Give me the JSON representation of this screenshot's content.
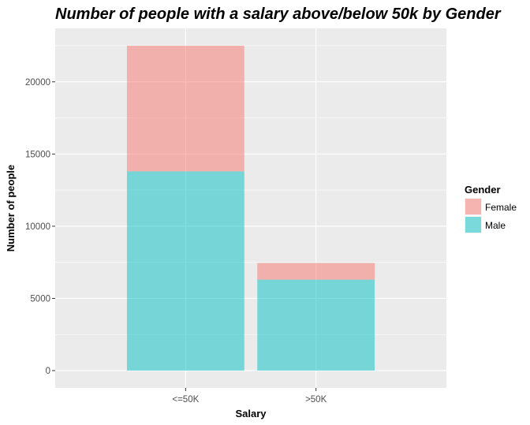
{
  "chart_data": {
    "type": "bar",
    "stacked": true,
    "title": "Number of people with a salary above/below 50k by Gender",
    "xlabel": "Salary",
    "ylabel": "Number of people",
    "categories": [
      "<=50K",
      ">50K"
    ],
    "series": [
      {
        "name": "Male",
        "values": [
          13800,
          6300
        ],
        "color": "#00BFC4"
      },
      {
        "name": "Female",
        "values": [
          8700,
          1150
        ],
        "color": "#F8766D"
      }
    ],
    "ylim": [
      -1200,
      23700
    ],
    "yticks": [
      0,
      5000,
      10000,
      15000,
      20000
    ],
    "ytick_labels": [
      "0",
      "5000",
      "10000",
      "15000",
      "20000"
    ],
    "legend": {
      "title": "Gender",
      "entries": [
        "Female",
        "Male"
      ],
      "position": "right"
    },
    "colors": {
      "panel": "#EBEBEB",
      "grid": "#FFFFFF",
      "female": "#F8766D",
      "male": "#00BFC4"
    }
  }
}
